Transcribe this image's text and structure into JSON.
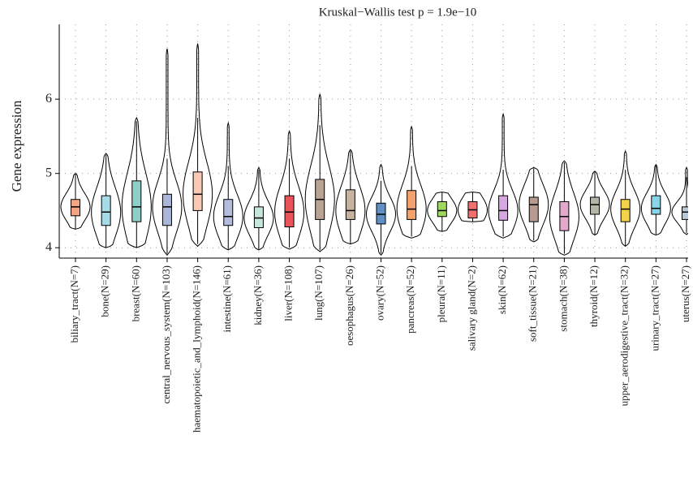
{
  "chart_data": {
    "type": "violin",
    "title": "Kruskal−Wallis test p = 1.9e−10",
    "y_label": "Gene expression",
    "categories": [
      "biliary_tract(N=7)",
      "bone(N=29)",
      "breast(N=60)",
      "central_nervous_system(N=103)",
      "haematopoietic_and_lymphoid(N=146)",
      "intestine(N=61)",
      "kidney(N=36)",
      "liver(N=108)",
      "lung(N=107)",
      "oesophagus(N=26)",
      "ovary(N=52)",
      "pancreas(N=52)",
      "pleura(N=11)",
      "salivary gland(N=2)",
      "skin(N=62)",
      "soft_tissue(N=21)",
      "stomach(N=38)",
      "thyroid(N=12)",
      "upper_aerodigestive_tract(N=32)",
      "urinary_tract(N=27)",
      "uterus(N=27)"
    ],
    "q1": [
      4.43,
      4.3,
      4.35,
      4.3,
      4.5,
      4.3,
      4.27,
      4.28,
      4.38,
      4.38,
      4.32,
      4.38,
      4.42,
      4.4,
      4.37,
      4.35,
      4.23,
      4.45,
      4.35,
      4.45,
      4.38
    ],
    "median": [
      4.55,
      4.48,
      4.55,
      4.55,
      4.72,
      4.42,
      4.4,
      4.48,
      4.65,
      4.5,
      4.45,
      4.52,
      4.5,
      4.51,
      4.5,
      4.58,
      4.42,
      4.58,
      4.52,
      4.53,
      4.48
    ],
    "q3": [
      4.65,
      4.7,
      4.9,
      4.72,
      5.02,
      4.65,
      4.55,
      4.7,
      4.92,
      4.78,
      4.6,
      4.77,
      4.62,
      4.62,
      4.7,
      4.68,
      4.62,
      4.68,
      4.65,
      4.7,
      4.55
    ],
    "whisker_low": [
      4.25,
      4.0,
      4.0,
      3.92,
      4.05,
      3.98,
      3.98,
      4.0,
      3.97,
      4.05,
      3.92,
      4.15,
      4.22,
      4.35,
      4.15,
      4.1,
      3.92,
      4.17,
      4.02,
      4.18,
      4.2
    ],
    "whisker_high": [
      5.0,
      5.25,
      5.7,
      5.2,
      5.75,
      5.1,
      5.05,
      5.2,
      5.65,
      5.3,
      4.9,
      5.1,
      4.75,
      4.75,
      5.05,
      5.07,
      5.15,
      5.02,
      5.05,
      5.12,
      4.95
    ],
    "violin_min": [
      4.25,
      4.0,
      4.0,
      3.9,
      4.02,
      3.97,
      3.97,
      3.98,
      3.95,
      4.05,
      3.9,
      4.13,
      4.22,
      4.35,
      4.13,
      4.08,
      3.9,
      4.17,
      4.02,
      4.17,
      4.18
    ],
    "violin_max": [
      5.0,
      5.27,
      5.75,
      6.68,
      6.75,
      5.68,
      5.08,
      5.57,
      6.07,
      5.32,
      5.12,
      5.63,
      4.75,
      4.75,
      5.8,
      5.08,
      5.17,
      5.03,
      5.3,
      5.12,
      5.08
    ],
    "colors": [
      "#f4a582",
      "#a6dbe8",
      "#8ecfc9",
      "#aab6d8",
      "#f9c9b6",
      "#b3bcdc",
      "#c5e6d8",
      "#e8545a",
      "#b8a394",
      "#c7b49e",
      "#5f8fc4",
      "#f4a26d",
      "#9fd85f",
      "#f07070",
      "#d6a8e0",
      "#b69b8e",
      "#e3a8cc",
      "#b5b5a8",
      "#f3d24b",
      "#89d4e8",
      "#b9c7d6"
    ],
    "ylim": [
      3.86,
      6.92
    ],
    "yticks": [
      4,
      5,
      6
    ],
    "grid": true
  }
}
